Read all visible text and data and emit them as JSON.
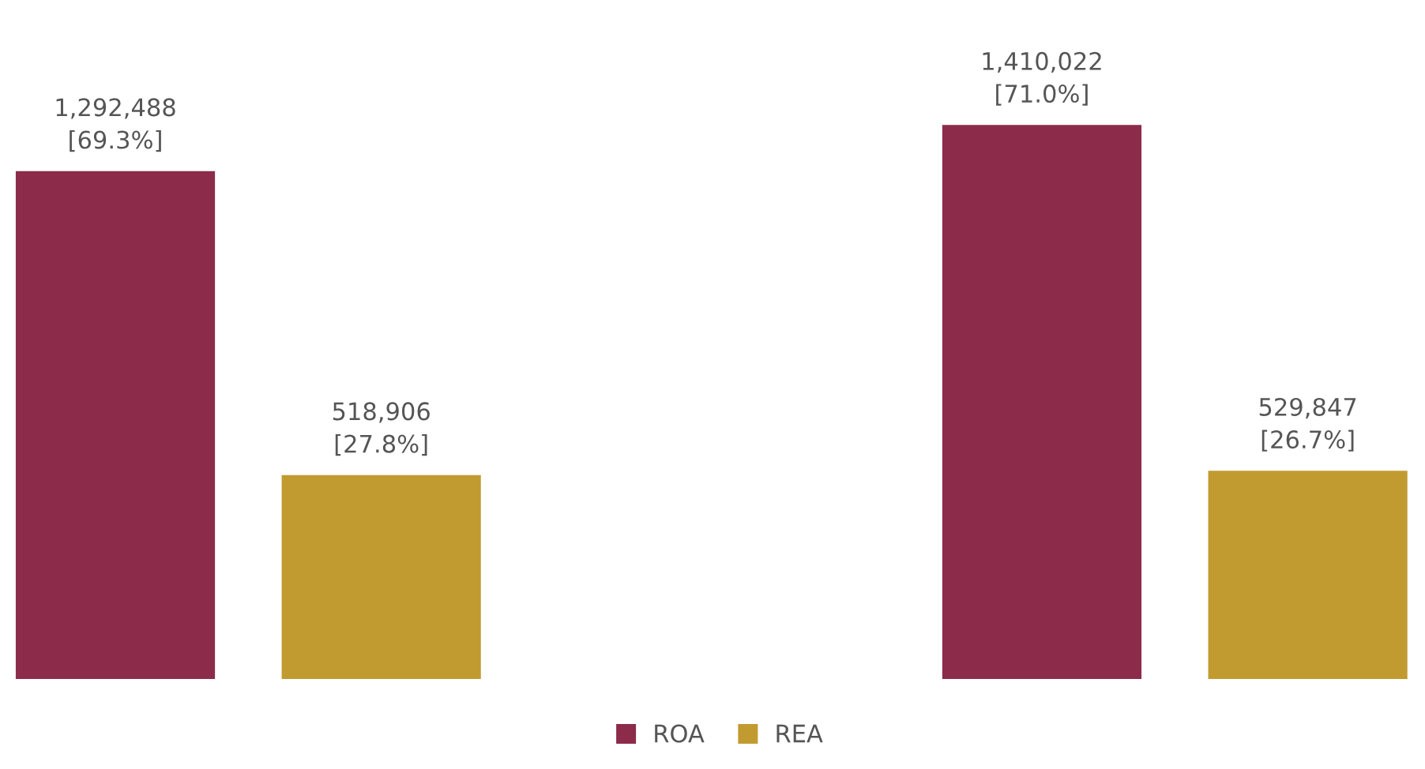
{
  "chart_data": {
    "type": "bar",
    "categories": [
      null,
      null
    ],
    "series": [
      {
        "name": "ROA",
        "color": "#8c2b4a",
        "values": [
          1292488,
          1410022
        ],
        "value_labels": [
          "1,292,488\n[69.3%]",
          "1,410,022\n[71.0%]"
        ]
      },
      {
        "name": "REA",
        "color": "#c29b30",
        "values": [
          518906,
          529847
        ],
        "value_labels": [
          "518,906\n[27.8%]",
          "529,847\n[26.7%]"
        ]
      }
    ],
    "legend": "bottom",
    "grid": false
  }
}
